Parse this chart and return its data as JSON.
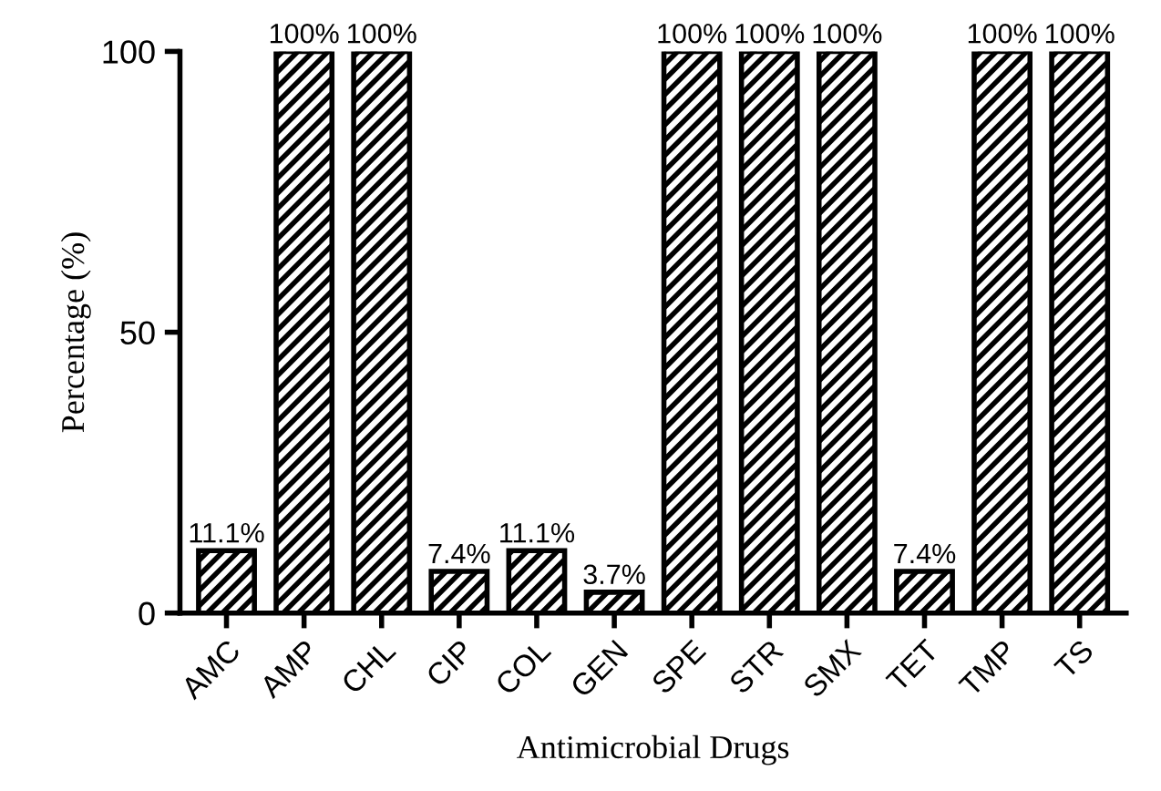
{
  "chart_data": {
    "type": "bar",
    "xlabel": "Antimicrobial Drugs",
    "ylabel": "Percentage (%)",
    "categories": [
      "AMC",
      "AMP",
      "CHL",
      "CIP",
      "COL",
      "GEN",
      "SPE",
      "STR",
      "SMX",
      "TET",
      "TMP",
      "TS"
    ],
    "values": [
      11.1,
      100,
      100,
      7.4,
      11.1,
      3.7,
      100,
      100,
      100,
      7.4,
      100,
      100
    ],
    "value_labels": [
      "11.1%",
      "100%",
      "100%",
      "7.4%",
      "11.1%",
      "3.7%",
      "100%",
      "100%",
      "100%",
      "7.4%",
      "100%",
      "100%"
    ],
    "color": "#000000",
    "ylim": [
      0,
      100
    ],
    "yticks": [
      0,
      50,
      100
    ],
    "grid": false
  }
}
